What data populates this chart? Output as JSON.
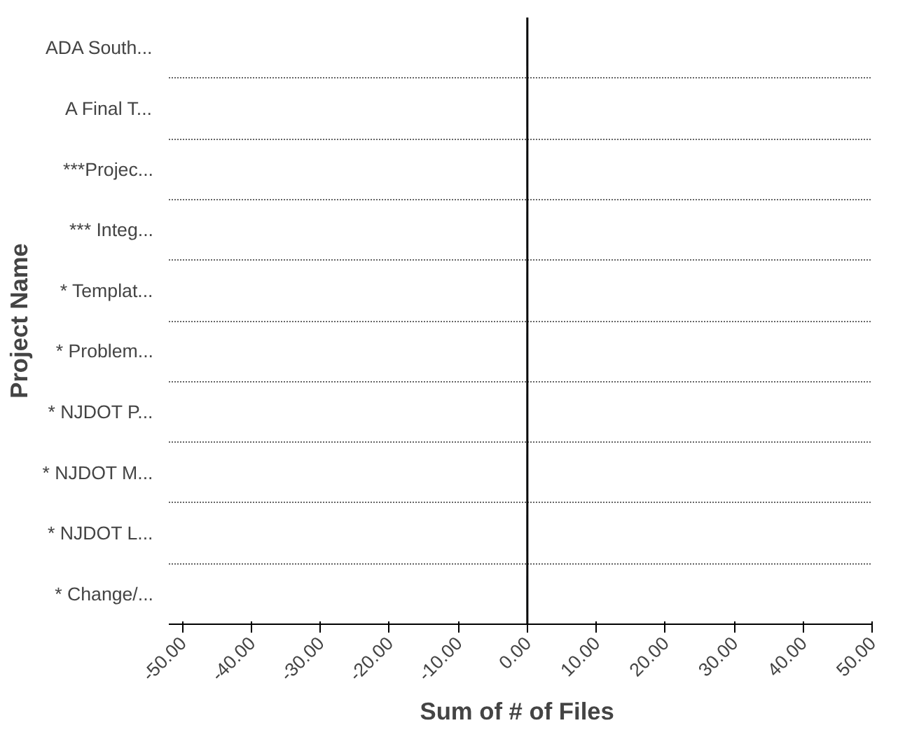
{
  "chart_data": {
    "type": "bar",
    "orientation": "horizontal",
    "xlabel": "Sum  of # of Files",
    "ylabel": "Project Name",
    "categories": [
      "ADA South...",
      "A Final T...",
      "***Projec...",
      "*** Integ...",
      "* Templat...",
      "* Problem...",
      "* NJDOT P...",
      "* NJDOT M...",
      "* NJDOT L...",
      "* Change/..."
    ],
    "values": [
      0,
      0,
      0,
      0,
      0,
      0,
      0,
      0,
      0,
      0
    ],
    "color": "#4f81bd",
    "xlim": [
      -52,
      50
    ],
    "xticks": [
      {
        "value": -50,
        "label": "-50.00"
      },
      {
        "value": -40,
        "label": "-40.00"
      },
      {
        "value": -30,
        "label": "-30.00"
      },
      {
        "value": -20,
        "label": "-20.00"
      },
      {
        "value": -10,
        "label": "-10.00"
      },
      {
        "value": 0,
        "label": "0.00"
      },
      {
        "value": 10,
        "label": "10.00"
      },
      {
        "value": 20,
        "label": "20.00"
      },
      {
        "value": 30,
        "label": "30.00"
      },
      {
        "value": 40,
        "label": "40.00"
      },
      {
        "value": 50,
        "label": "50.00"
      }
    ],
    "ref_lines": [
      {
        "axis": "x",
        "value": 0,
        "color": "#000000"
      }
    ],
    "grid": "y"
  }
}
